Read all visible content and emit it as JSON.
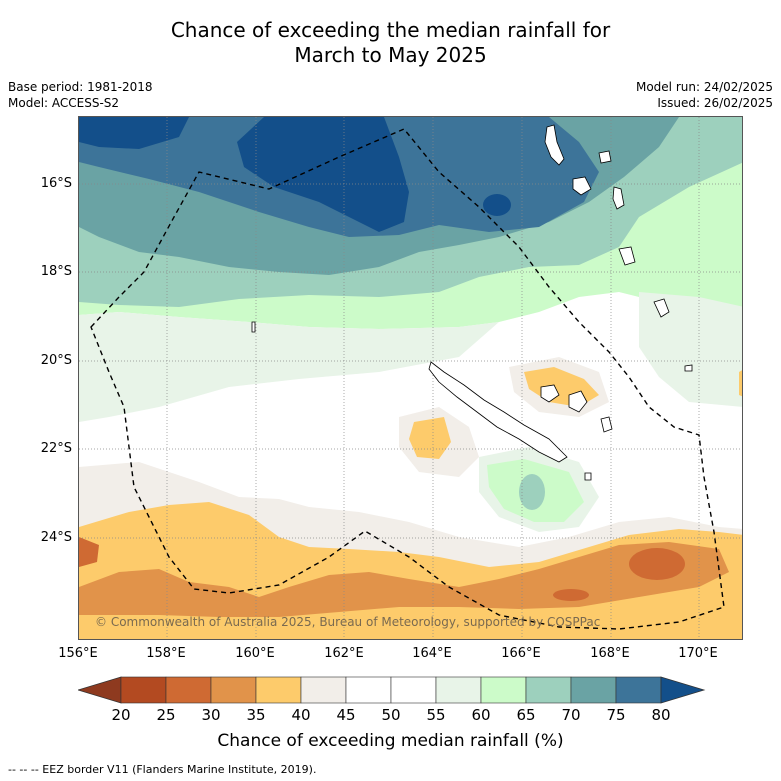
{
  "title_line1": "Chance of exceeding the median rainfall for",
  "title_line2": "March to May 2025",
  "meta_left": [
    "Base period: 1981-2018",
    "Model: ACCESS-S2"
  ],
  "meta_right": [
    "Model run: 24/02/2025",
    "Issued: 26/02/2025"
  ],
  "map": {
    "lat_labels": [
      "16°S",
      "18°S",
      "20°S",
      "22°S",
      "24°S"
    ],
    "lon_labels": [
      "156°E",
      "158°E",
      "160°E",
      "162°E",
      "164°E",
      "166°E",
      "168°E",
      "170°E"
    ],
    "copyright": "© Commonwealth of Australia 2025, Bureau of Meteorology, supported by COSPPac",
    "eez_border": "dashed"
  },
  "colorbar": {
    "ticks": [
      "20",
      "25",
      "30",
      "35",
      "40",
      "45",
      "50",
      "55",
      "60",
      "65",
      "70",
      "75",
      "80"
    ],
    "colors": [
      "#8e3a1f",
      "#b34a21",
      "#cf6a33",
      "#e1934a",
      "#fdcb6b",
      "#f2eee9",
      "#ffffff",
      "#ffffff",
      "#e8f4e8",
      "#ccfbc9",
      "#9dd0bd",
      "#6aa3a4",
      "#3d7499",
      "#134f8a"
    ],
    "label": "Chance of exceeding median rainfall (%)"
  },
  "footnote": "--  --  -- EEZ border V11 (Flanders Marine Institute, 2019)."
}
